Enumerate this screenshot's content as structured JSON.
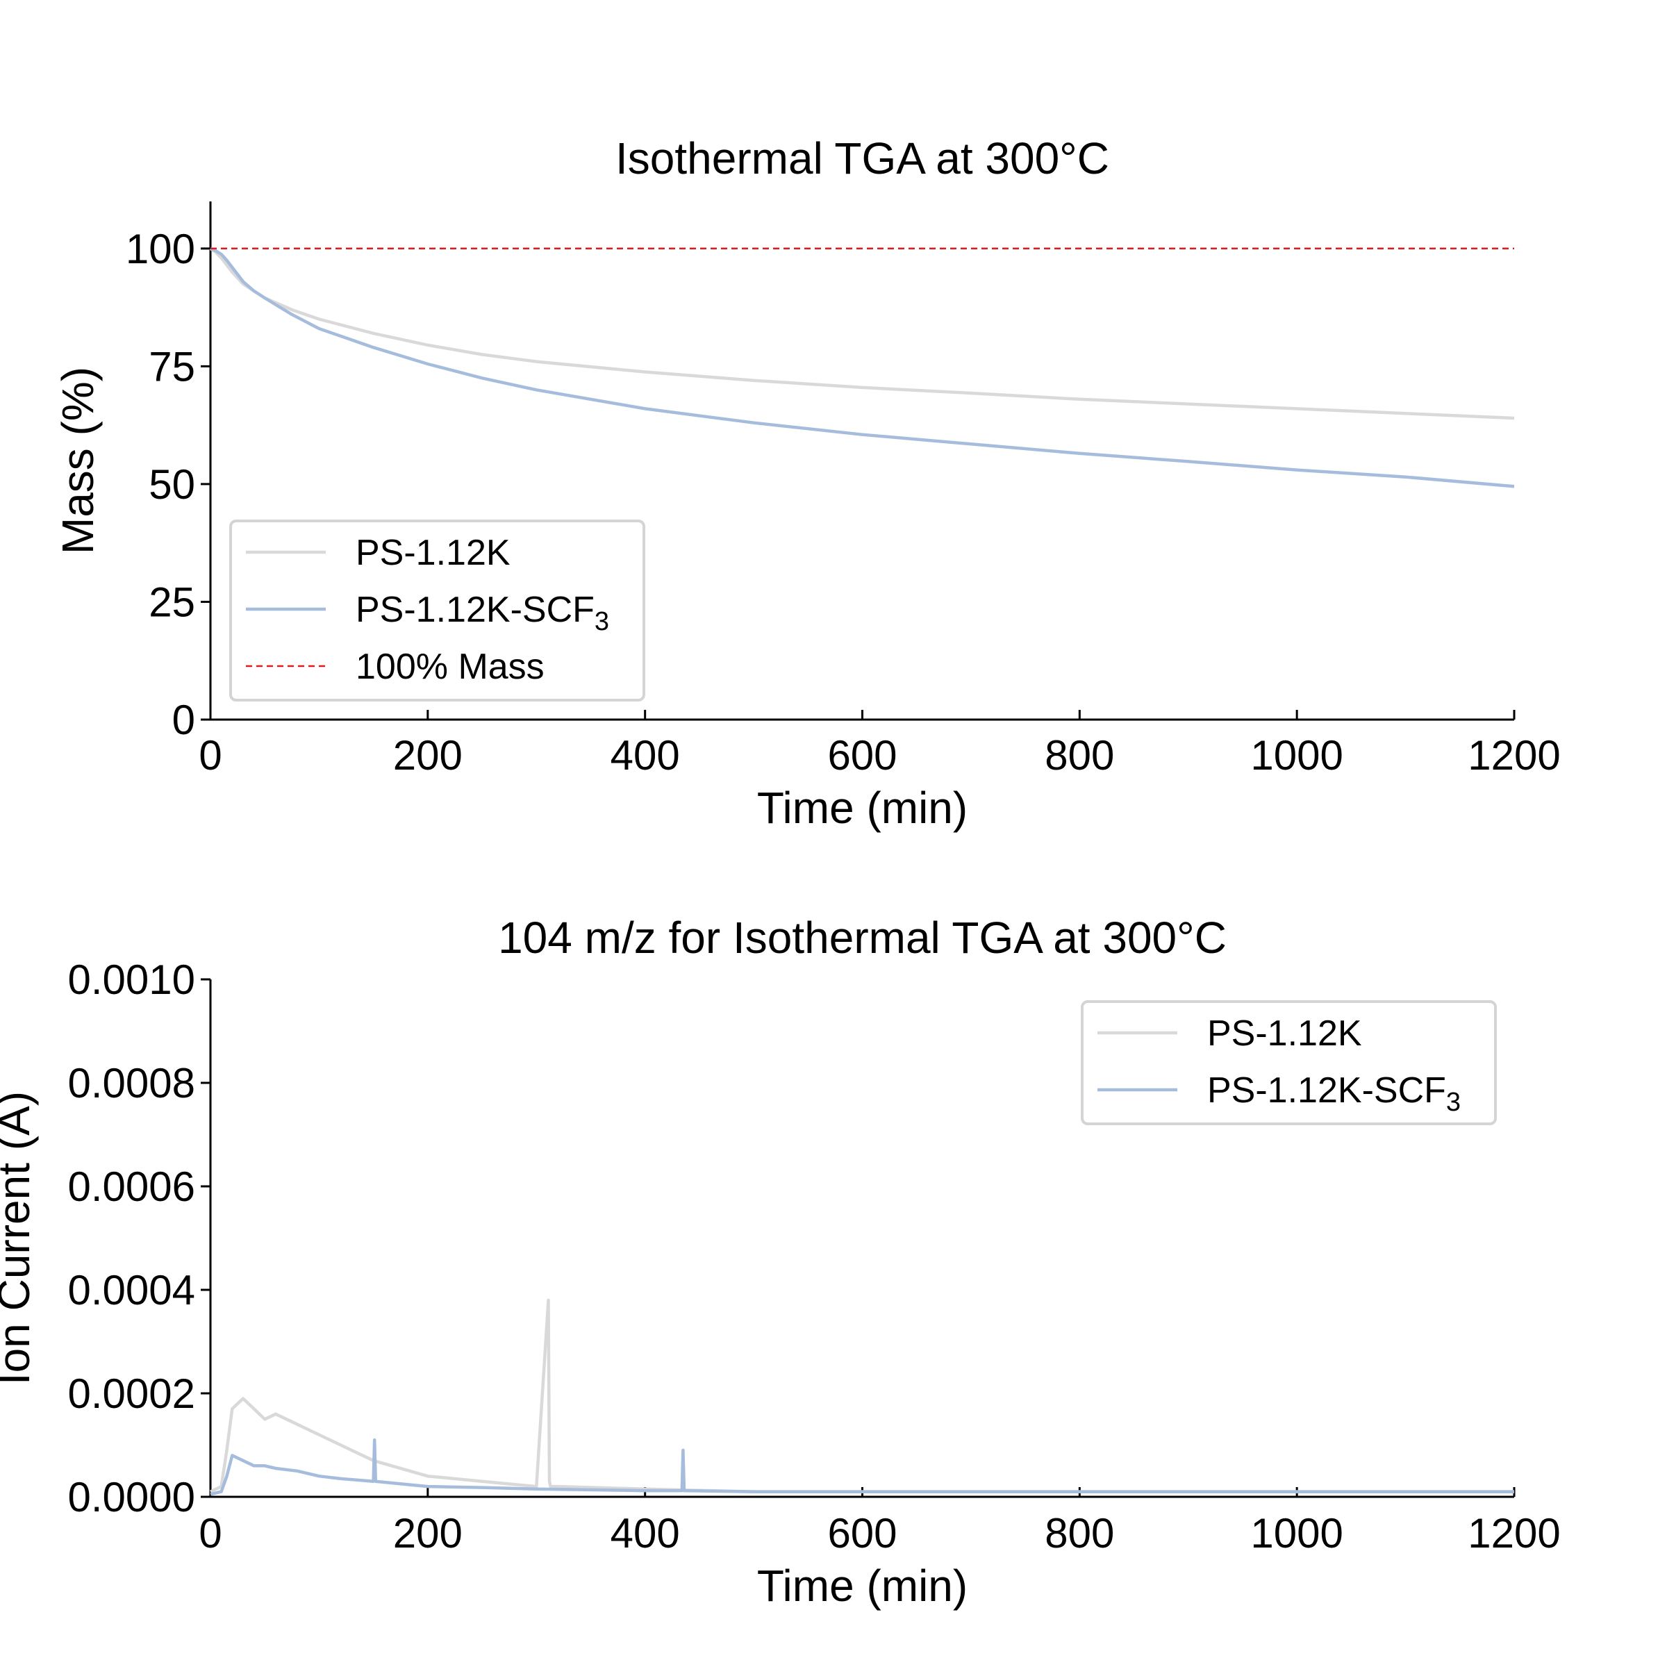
{
  "chart_data": [
    {
      "type": "line",
      "title": "Isothermal TGA at 300°C",
      "xlabel": "Time (min)",
      "ylabel": "Mass (%)",
      "xlim": [
        0,
        1200
      ],
      "ylim": [
        0,
        110
      ],
      "xticks": [
        0,
        200,
        400,
        600,
        800,
        1000,
        1200
      ],
      "yticks": [
        0,
        25,
        50,
        75,
        100
      ],
      "grid": false,
      "legend_position": "lower-left",
      "series": [
        {
          "name": "PS-1.12K",
          "color": "#d9d9d9",
          "x": [
            0,
            5,
            10,
            15,
            20,
            30,
            40,
            50,
            75,
            100,
            150,
            200,
            250,
            300,
            400,
            500,
            600,
            700,
            800,
            900,
            1000,
            1100,
            1200
          ],
          "y": [
            100,
            99.2,
            98,
            96.5,
            95,
            92.5,
            91,
            89.5,
            87,
            85,
            82,
            79.5,
            77.5,
            76,
            73.8,
            72,
            70.5,
            69.3,
            68,
            67,
            66,
            65,
            64
          ]
        },
        {
          "name": "PS-1.12K-SCF3",
          "label_main": "PS-1.12K-SCF",
          "label_sub": "3",
          "color": "#a5bcdc",
          "x": [
            0,
            5,
            10,
            15,
            20,
            30,
            40,
            50,
            75,
            100,
            150,
            200,
            250,
            300,
            400,
            500,
            600,
            700,
            800,
            900,
            1000,
            1100,
            1200
          ],
          "y": [
            100,
            99.5,
            98.8,
            97.5,
            96,
            93,
            91,
            89.5,
            86,
            83,
            79,
            75.5,
            72.5,
            70,
            66,
            63,
            60.5,
            58.5,
            56.5,
            54.8,
            53,
            51.5,
            49.5
          ]
        },
        {
          "name": "100% Mass",
          "color": "#e31a1c",
          "style": "dashed",
          "x": [
            0,
            1200
          ],
          "y": [
            100,
            100
          ]
        }
      ]
    },
    {
      "type": "line",
      "title": "104 m/z for Isothermal TGA at 300°C",
      "xlabel": "Time (min)",
      "ylabel": "Ion Current (A)",
      "xlim": [
        0,
        1200
      ],
      "ylim": [
        0,
        0.001
      ],
      "xticks": [
        0,
        200,
        400,
        600,
        800,
        1000,
        1200
      ],
      "yticks": [
        "0.0000",
        "0.0002",
        "0.0004",
        "0.0006",
        "0.0008",
        "0.0010"
      ],
      "grid": false,
      "legend_position": "top-right",
      "series": [
        {
          "name": "PS-1.12K",
          "color": "#d9d9d9",
          "x": [
            0,
            10,
            15,
            20,
            30,
            40,
            50,
            60,
            80,
            100,
            120,
            150,
            200,
            250,
            300,
            311,
            312,
            313,
            320,
            400,
            500,
            600,
            700,
            800,
            900,
            1000,
            1100,
            1200
          ],
          "y": [
            1e-05,
            2e-05,
            9e-05,
            0.00017,
            0.00019,
            0.00017,
            0.00015,
            0.00016,
            0.00014,
            0.00012,
            0.0001,
            7e-05,
            4e-05,
            3e-05,
            2e-05,
            0.00038,
            3e-05,
            2e-05,
            2e-05,
            1.5e-05,
            1e-05,
            1e-05,
            1e-05,
            1e-05,
            1e-05,
            1e-05,
            1e-05,
            1e-05
          ]
        },
        {
          "name": "PS-1.12K-SCF3",
          "label_main": "PS-1.12K-SCF",
          "label_sub": "3",
          "color": "#a5bcdc",
          "x": [
            0,
            10,
            15,
            20,
            30,
            40,
            50,
            60,
            80,
            100,
            120,
            150,
            151,
            152,
            200,
            250,
            300,
            400,
            434,
            435,
            436,
            500,
            600,
            700,
            800,
            900,
            1000,
            1100,
            1200
          ],
          "y": [
            5e-06,
            1e-05,
            4e-05,
            8e-05,
            7e-05,
            6e-05,
            6e-05,
            5.5e-05,
            5e-05,
            4e-05,
            3.5e-05,
            3e-05,
            0.00011,
            3e-05,
            2e-05,
            1.8e-05,
            1.5e-05,
            1.2e-05,
            1.2e-05,
            9e-05,
            1.2e-05,
            1e-05,
            1e-05,
            1e-05,
            1e-05,
            1e-05,
            1e-05,
            1e-05,
            1e-05
          ]
        }
      ]
    }
  ]
}
